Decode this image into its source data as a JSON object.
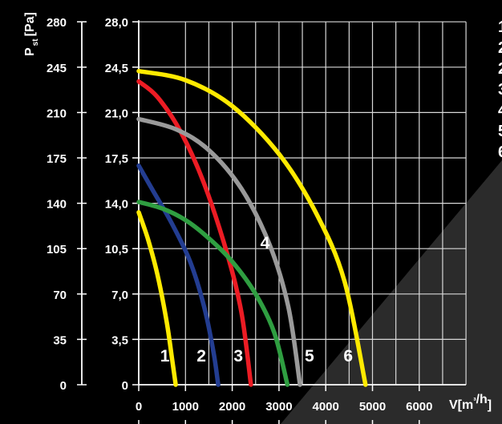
{
  "chart_data": {
    "type": "line",
    "ylabel_main": "P",
    "ylabel_sub": "st",
    "ylabel_unit": "[Pa]",
    "xlabel": "V[m³/h]",
    "x_ticks": [
      "0",
      "1000",
      "2000",
      "3000",
      "4000",
      "5000",
      "6000"
    ],
    "y_ticks_pa": [
      "0",
      "35",
      "70",
      "105",
      "140",
      "175",
      "210",
      "245",
      "280"
    ],
    "y_ticks_secondary": [
      "0",
      "3,5",
      "7,0",
      "10,5",
      "14,0",
      "17,5",
      "21,0",
      "24,5",
      "28,0"
    ],
    "xlim": [
      0,
      7000
    ],
    "ylim": [
      0,
      280
    ],
    "grid": true,
    "legend_fragments": [
      "1",
      "2",
      "2",
      "3",
      "4",
      "5",
      "6"
    ],
    "series": [
      {
        "name": "1",
        "color": "#ffea00",
        "x": [
          0,
          200,
          400,
          600,
          720,
          790
        ],
        "y": [
          133,
          112,
          85,
          48,
          18,
          0
        ]
      },
      {
        "name": "2",
        "color": "#233d91",
        "x": [
          0,
          300,
          700,
          1100,
          1400,
          1600,
          1700
        ],
        "y": [
          169,
          150,
          125,
          95,
          60,
          25,
          0
        ]
      },
      {
        "name": "3",
        "color": "#ec1c24",
        "x": [
          0,
          400,
          900,
          1400,
          1900,
          2200,
          2400
        ],
        "y": [
          234,
          222,
          195,
          155,
          100,
          55,
          0
        ]
      },
      {
        "name": "4",
        "color": "#2f9e41",
        "x": [
          0,
          500,
          1000,
          1500,
          2000,
          2500,
          2900,
          3180
        ],
        "y": [
          141,
          136,
          127,
          113,
          95,
          70,
          40,
          0
        ]
      },
      {
        "name": "5",
        "color": "#9a9a9a",
        "x": [
          0,
          800,
          1500,
          2200,
          2800,
          3200,
          3450
        ],
        "y": [
          205,
          197,
          181,
          151,
          108,
          60,
          0
        ]
      },
      {
        "name": "6",
        "color": "#ffea00",
        "x": [
          0,
          1000,
          2000,
          3000,
          3800,
          4400,
          4850
        ],
        "y": [
          242,
          235,
          215,
          178,
          132,
          80,
          0
        ]
      }
    ],
    "curve_labels": [
      {
        "text": "1",
        "x": 560,
        "y": 18
      },
      {
        "text": "2",
        "x": 1340,
        "y": 18
      },
      {
        "text": "3",
        "x": 2130,
        "y": 18
      },
      {
        "text": "4",
        "x": 2700,
        "y": 105
      },
      {
        "text": "5",
        "x": 3650,
        "y": 18
      },
      {
        "text": "6",
        "x": 4480,
        "y": 18
      }
    ]
  }
}
